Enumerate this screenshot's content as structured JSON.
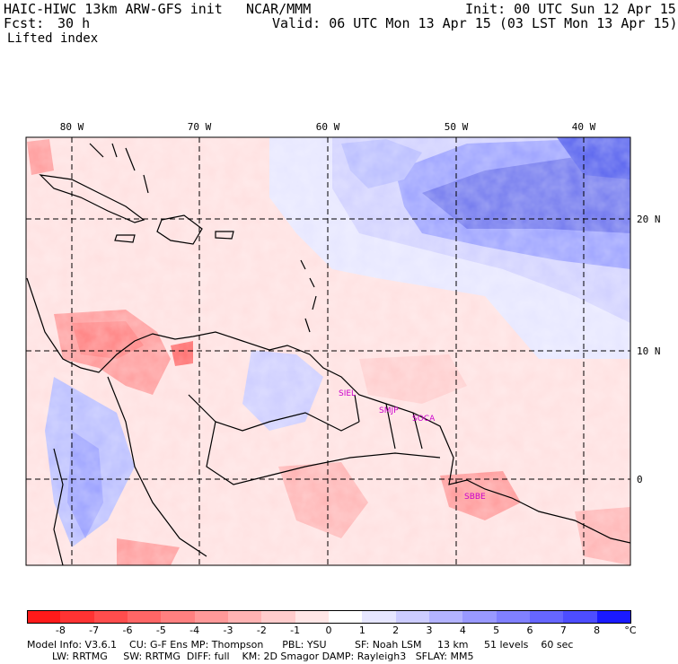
{
  "header": {
    "title": "HAIC-HIWC 13km ARW-GFS init",
    "org": "NCAR/MMM",
    "init": "Init: 00 UTC Sun 12 Apr 15",
    "fcst_label": "Fcst:",
    "fcst_value": "30 h",
    "valid": "Valid: 06 UTC Mon 13 Apr 15 (03 LST Mon 13 Apr 15)",
    "field": "Lifted index"
  },
  "map": {
    "lon_labels": [
      "80 W",
      "70 W",
      "60 W",
      "50 W",
      "40 W"
    ],
    "lat_labels": [
      "20 N",
      "10 N",
      "0"
    ],
    "stations": [
      "SIEL",
      "SMJP",
      "SOCA",
      "SBBE"
    ]
  },
  "colorbar": {
    "levels": [
      "-8",
      "-7",
      "-6",
      "-5",
      "-4",
      "-3",
      "-2",
      "-1",
      "0",
      "1",
      "2",
      "3",
      "4",
      "5",
      "6",
      "7",
      "8"
    ],
    "unit": "°C",
    "colors": [
      "#ff1a1a",
      "#ff3333",
      "#ff4d4d",
      "#ff6666",
      "#ff8080",
      "#ff9999",
      "#ffb3b3",
      "#ffcccc",
      "#ffe6e6",
      "#ffffff",
      "#e6e6ff",
      "#ccccff",
      "#b3b3ff",
      "#9999ff",
      "#8080ff",
      "#6666ff",
      "#4d4dff",
      "#1a1aff"
    ]
  },
  "footer": {
    "line1": "Model Info: V3.6.1    CU: G-F Ens MP: Thompson      PBL: YSU         SF: Noah LSM     13 km     51 levels    60 sec",
    "line2": "LW: RRTMG     SW: RRTMG  DIFF: full    KM: 2D Smagor DAMP: Rayleigh3   SFLAY: MM5"
  }
}
